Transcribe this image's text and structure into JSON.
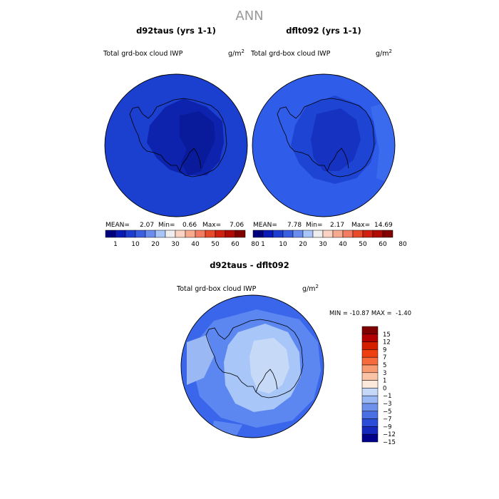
{
  "page_title": "ANN",
  "units": "g/m",
  "units_exponent": "2",
  "panels": [
    {
      "case_name": "d92taus (yrs 1-1)",
      "field_label": "Total grd-box cloud IWP",
      "stats": {
        "mean_label": "MEAN=",
        "mean": "2.07",
        "min_label": "Min=",
        "min": "0.66",
        "max_label": "Max=",
        "max": "7.06"
      },
      "colorbar_ticks": [
        "1",
        "10",
        "20",
        "30",
        "40",
        "50",
        "60",
        "80"
      ]
    },
    {
      "case_name": "dflt092 (yrs 1-1)",
      "field_label": "Total grd-box cloud IWP",
      "stats": {
        "mean_label": "MEAN=",
        "mean": "7.78",
        "min_label": "Min=",
        "min": "2.17",
        "max_label": "Max=",
        "max": "14.69"
      },
      "colorbar_ticks": [
        "1",
        "10",
        "20",
        "30",
        "40",
        "50",
        "60",
        "80"
      ]
    }
  ],
  "diff": {
    "title": "d92taus - dflt092",
    "field_label": "Total grd-box cloud IWP",
    "minmax": "MIN = -10.87 MAX =  -1.40",
    "colorbar_ticks": [
      "15",
      "12",
      "9",
      "7",
      "5",
      "3",
      "1",
      "0",
      "−1",
      "−3",
      "−5",
      "−7",
      "−9",
      "−12",
      "−15"
    ]
  },
  "colors": {
    "scale": [
      "#00007f",
      "#0a1ab4",
      "#1e3ed2",
      "#3a5fe0",
      "#6a8ef0",
      "#a8c4f8",
      "#eeeeee",
      "#fbd3c3",
      "#f7aa8e",
      "#f27c5f",
      "#e84a2c",
      "#d02010",
      "#b00a05",
      "#800000"
    ],
    "diff_scale": [
      "#7f0000",
      "#b30000",
      "#d42000",
      "#ee3f10",
      "#f66a3c",
      "#f89a72",
      "#fbc3a6",
      "#fde8dc",
      "#c6d8f8",
      "#9ab8f4",
      "#6e92ec",
      "#4a6fe4",
      "#2a4cd8",
      "#1528bd",
      "#00008a"
    ],
    "left_ocean": "#1b3fcf",
    "left_ice": "#0d22ad",
    "left_deep": "#091a9a",
    "right_ocean": "#2f5ce8",
    "right_mid": "#1e44d4",
    "right_deep": "#1632c0",
    "diff_outer": "#3a66ec",
    "diff_mid": "#5c86f0",
    "diff_light": "#a8c6f8",
    "diff_lighter": "#c6daf8",
    "coast": "#000000"
  }
}
